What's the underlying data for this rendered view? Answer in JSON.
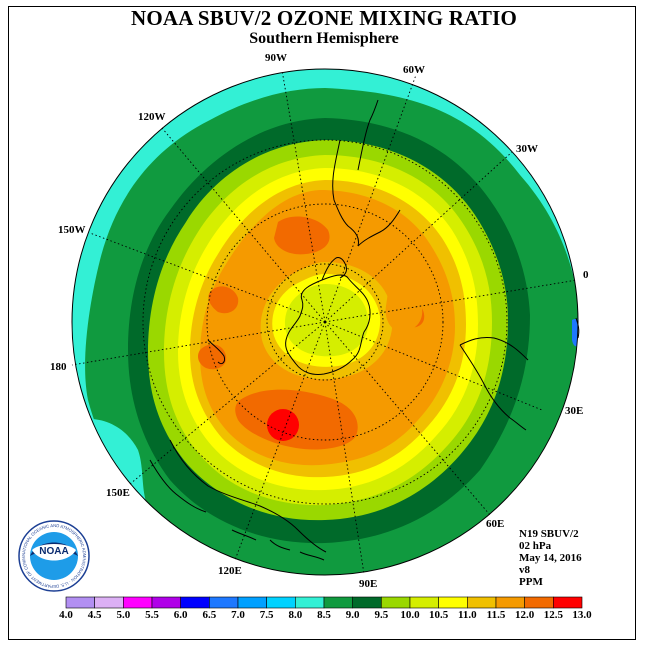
{
  "header": {
    "title": "NOAA SBUV/2 OZONE MIXING RATIO",
    "subtitle": "Southern Hemisphere"
  },
  "map": {
    "projection": "south-polar-stereographic",
    "longitude_labels": [
      "0",
      "30E",
      "60E",
      "90E",
      "120E",
      "150E",
      "180",
      "150W",
      "120W",
      "90W",
      "60W",
      "30W"
    ],
    "background_color": "#33f0d5"
  },
  "info": {
    "satellite": "N19 SBUV/2",
    "pressure": "02 hPa",
    "date": "May 14, 2016",
    "version": "v8",
    "units": "PPM"
  },
  "logo": {
    "text": "NOAA",
    "ring_text": "NATIONAL OCEANIC AND ATMOSPHERIC ADMINISTRATION · U.S. DEPARTMENT OF COMMERCE"
  },
  "colorbar": {
    "tick_labels": [
      "4.0",
      "4.5",
      "5.0",
      "5.5",
      "6.0",
      "6.5",
      "7.0",
      "7.5",
      "8.0",
      "8.5",
      "9.0",
      "9.5",
      "10.0",
      "10.5",
      "11.0",
      "11.5",
      "12.0",
      "12.5",
      "13.0"
    ],
    "colors": [
      "#b28ff2",
      "#dcb0f5",
      "#ff00ff",
      "#b000e8",
      "#0000ff",
      "#1e78ff",
      "#00a0ff",
      "#00d2ff",
      "#33f0d5",
      "#109a3f",
      "#006a2a",
      "#9ad800",
      "#d5ee00",
      "#ffff00",
      "#f0c000",
      "#f59a00",
      "#f26a00",
      "#ff0000",
      "#7c4a2a"
    ]
  }
}
